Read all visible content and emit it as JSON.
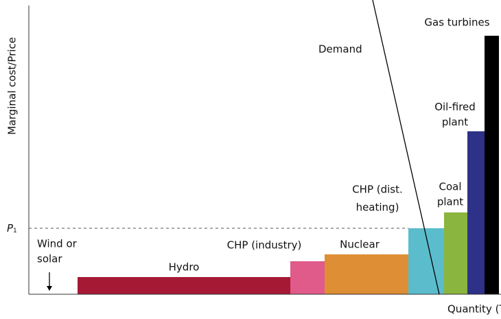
{
  "axes": {
    "y_label": "Marginal cost/Price",
    "x_label": "Quantity (TWh)",
    "price_symbol": "P",
    "price_subscript": "1"
  },
  "demand_label": "Demand",
  "blocks": [
    {
      "lines": [
        "Wind or",
        "solar"
      ]
    },
    {
      "lines": [
        "Hydro"
      ]
    },
    {
      "lines": [
        "CHP (industry)"
      ]
    },
    {
      "lines": [
        "Nuclear"
      ]
    },
    {
      "lines": [
        "CHP (dist.",
        "heating)"
      ]
    },
    {
      "lines": [
        "Coal",
        "plant"
      ]
    },
    {
      "lines": [
        "Oil-fired",
        "plant"
      ]
    },
    {
      "lines": [
        "Gas turbines"
      ]
    }
  ]
}
